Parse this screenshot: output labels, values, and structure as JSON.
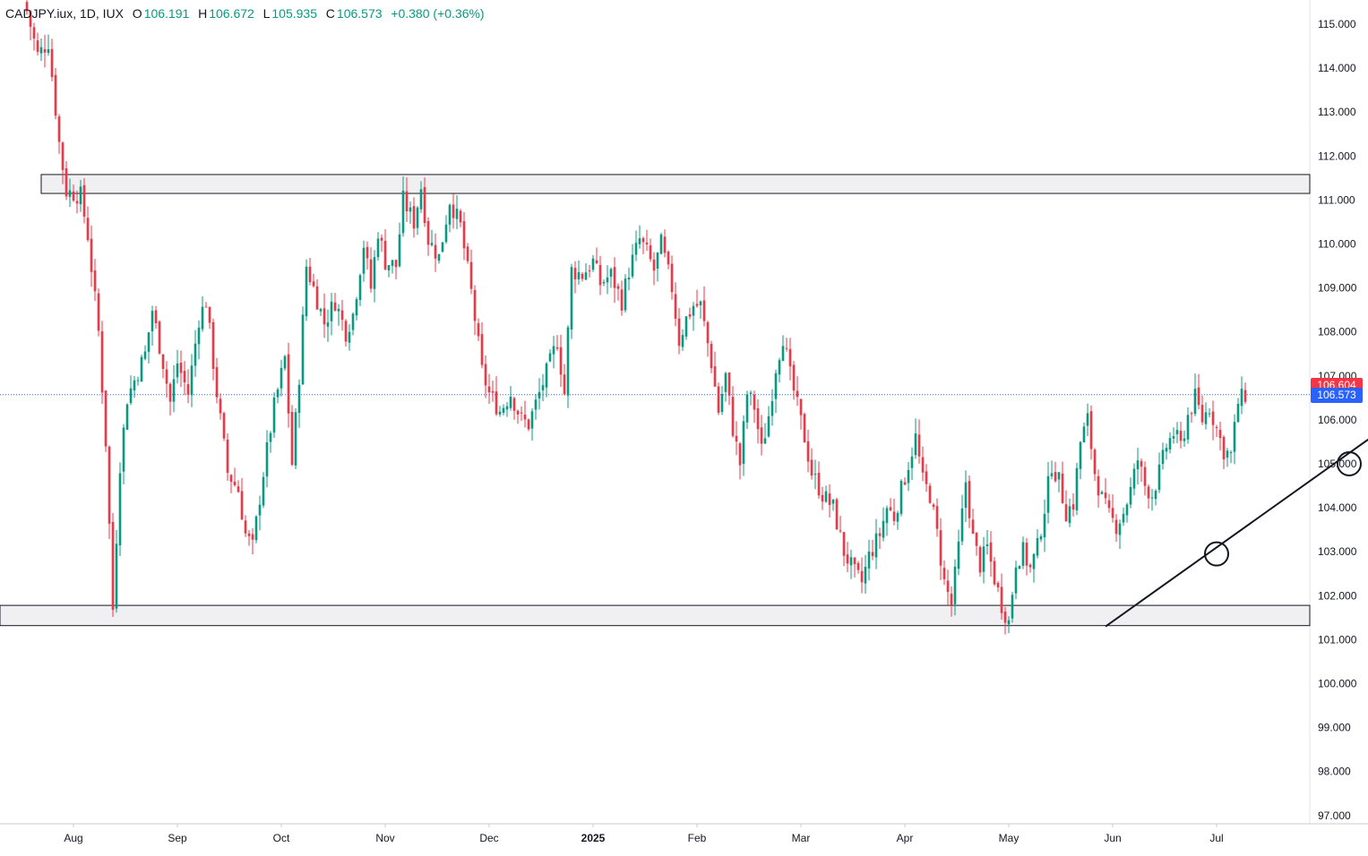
{
  "legend": {
    "symbol": "CADJPY.iux, 1D, IUX",
    "open_label": "O",
    "open": "106.191",
    "high_label": "H",
    "high": "106.672",
    "low_label": "L",
    "low": "105.935",
    "close_label": "C",
    "close": "106.573",
    "change": "+0.380 (+0.36%)"
  },
  "price_tags": {
    "high_marker": "106.604",
    "last_price": "106.573"
  },
  "colors": {
    "up": "#089981",
    "down": "#f23645",
    "tag_red": "#f23645",
    "tag_blue": "#2962ff",
    "grid_line": "#e0e3eb",
    "zone_fill": "#f0f0f2"
  },
  "chart_data": {
    "type": "candlestick",
    "title": "CADJPY.iux, 1D, IUX",
    "xlabel": "",
    "ylabel": "",
    "ylim": [
      96.8,
      115.5
    ],
    "y_ticks": [
      115,
      114,
      113,
      112,
      111,
      110,
      109,
      108,
      107,
      106,
      105,
      104,
      103,
      102,
      101,
      100,
      99,
      98,
      97
    ],
    "y_tick_labels": [
      "115.000",
      "114.000",
      "113.000",
      "112.000",
      "111.000",
      "110.000",
      "109.000",
      "108.000",
      "107.000",
      "106.000",
      "105.000",
      "104.000",
      "103.000",
      "102.000",
      "101.000",
      "100.000",
      "99.000",
      "98.000",
      "97.000"
    ],
    "x_ticks": [
      {
        "label": "Aug",
        "index": 13
      },
      {
        "label": "Sep",
        "index": 42
      },
      {
        "label": "Oct",
        "index": 71
      },
      {
        "label": "Nov",
        "index": 100
      },
      {
        "label": "Dec",
        "index": 129
      },
      {
        "label": "2025",
        "index": 158
      },
      {
        "label": "Feb",
        "index": 187
      },
      {
        "label": "Mar",
        "index": 216
      },
      {
        "label": "Apr",
        "index": 245
      },
      {
        "label": "May",
        "index": 274
      },
      {
        "label": "Jun",
        "index": 303
      },
      {
        "label": "Jul",
        "index": 332
      }
    ],
    "bar_count": 340,
    "waypoints": [
      [
        0,
        115.3
      ],
      [
        3,
        114.3
      ],
      [
        6,
        114.6
      ],
      [
        9,
        112.3
      ],
      [
        11,
        111.2
      ],
      [
        15,
        111.1
      ],
      [
        17,
        110.2
      ],
      [
        20,
        108.0
      ],
      [
        22,
        105.5
      ],
      [
        24,
        101.7
      ],
      [
        26,
        105.0
      ],
      [
        28,
        106.5
      ],
      [
        33,
        107.5
      ],
      [
        35,
        108.5
      ],
      [
        38,
        107.3
      ],
      [
        40,
        106.4
      ],
      [
        42,
        107.3
      ],
      [
        45,
        106.6
      ],
      [
        48,
        108.3
      ],
      [
        50,
        108.7
      ],
      [
        53,
        106.6
      ],
      [
        56,
        104.8
      ],
      [
        59,
        104.4
      ],
      [
        61,
        103.4
      ],
      [
        63,
        103.1
      ],
      [
        66,
        104.8
      ],
      [
        69,
        106.3
      ],
      [
        72,
        107.4
      ],
      [
        74,
        105.0
      ],
      [
        76,
        107.0
      ],
      [
        78,
        109.5
      ],
      [
        80,
        109.0
      ],
      [
        83,
        108.2
      ],
      [
        86,
        108.7
      ],
      [
        89,
        108.0
      ],
      [
        91,
        108.4
      ],
      [
        94,
        110.0
      ],
      [
        96,
        109.0
      ],
      [
        98,
        110.3
      ],
      [
        100,
        109.6
      ],
      [
        103,
        109.5
      ],
      [
        105,
        111.0
      ],
      [
        108,
        110.5
      ],
      [
        110,
        111.3
      ],
      [
        112,
        110.1
      ],
      [
        115,
        109.7
      ],
      [
        118,
        111.0
      ],
      [
        121,
        110.4
      ],
      [
        124,
        108.9
      ],
      [
        127,
        107.1
      ],
      [
        129,
        106.6
      ],
      [
        132,
        106.2
      ],
      [
        135,
        106.6
      ],
      [
        138,
        106.0
      ],
      [
        140,
        105.9
      ],
      [
        143,
        106.6
      ],
      [
        146,
        107.3
      ],
      [
        148,
        107.8
      ],
      [
        150,
        106.6
      ],
      [
        152,
        109.4
      ],
      [
        155,
        109.3
      ],
      [
        158,
        109.6
      ],
      [
        160,
        109.1
      ],
      [
        163,
        109.3
      ],
      [
        166,
        108.7
      ],
      [
        168,
        109.4
      ],
      [
        171,
        110.1
      ],
      [
        173,
        109.8
      ],
      [
        175,
        109.4
      ],
      [
        177,
        110.0
      ],
      [
        180,
        109.0
      ],
      [
        182,
        107.8
      ],
      [
        184,
        108.3
      ],
      [
        186,
        108.6
      ],
      [
        188,
        108.6
      ],
      [
        191,
        107.3
      ],
      [
        193,
        106.2
      ],
      [
        195,
        107.0
      ],
      [
        197,
        105.8
      ],
      [
        199,
        105.0
      ],
      [
        201,
        106.6
      ],
      [
        203,
        106.3
      ],
      [
        205,
        105.3
      ],
      [
        207,
        106.1
      ],
      [
        209,
        107.2
      ],
      [
        211,
        107.9
      ],
      [
        213,
        107.0
      ],
      [
        215,
        106.3
      ],
      [
        217,
        105.6
      ],
      [
        219,
        104.8
      ],
      [
        222,
        104.3
      ],
      [
        225,
        104.0
      ],
      [
        228,
        103.0
      ],
      [
        231,
        102.5
      ],
      [
        233,
        102.3
      ],
      [
        235,
        102.9
      ],
      [
        238,
        103.4
      ],
      [
        240,
        104.0
      ],
      [
        242,
        103.8
      ],
      [
        244,
        104.4
      ],
      [
        246,
        105.0
      ],
      [
        248,
        105.6
      ],
      [
        250,
        104.6
      ],
      [
        252,
        104.3
      ],
      [
        254,
        103.4
      ],
      [
        256,
        102.3
      ],
      [
        258,
        101.8
      ],
      [
        260,
        103.1
      ],
      [
        262,
        104.6
      ],
      [
        264,
        103.3
      ],
      [
        266,
        102.7
      ],
      [
        268,
        103.1
      ],
      [
        270,
        102.4
      ],
      [
        272,
        101.8
      ],
      [
        274,
        101.4
      ],
      [
        276,
        102.8
      ],
      [
        278,
        103.0
      ],
      [
        280,
        102.6
      ],
      [
        282,
        103.1
      ],
      [
        284,
        104.0
      ],
      [
        286,
        105.0
      ],
      [
        288,
        104.6
      ],
      [
        290,
        103.9
      ],
      [
        292,
        104.1
      ],
      [
        294,
        105.5
      ],
      [
        296,
        106.0
      ],
      [
        298,
        104.8
      ],
      [
        300,
        104.2
      ],
      [
        302,
        103.8
      ],
      [
        304,
        103.6
      ],
      [
        306,
        103.9
      ],
      [
        308,
        104.4
      ],
      [
        310,
        105.1
      ],
      [
        312,
        104.5
      ],
      [
        314,
        104.3
      ],
      [
        316,
        104.8
      ],
      [
        318,
        105.4
      ],
      [
        320,
        105.7
      ],
      [
        322,
        105.4
      ],
      [
        324,
        106.1
      ],
      [
        326,
        106.5
      ],
      [
        328,
        106.0
      ],
      [
        330,
        106.3
      ],
      [
        332,
        105.8
      ],
      [
        334,
        105.3
      ],
      [
        336,
        105.2
      ],
      [
        338,
        106.4
      ],
      [
        340,
        106.57
      ]
    ],
    "horizontal_zones": [
      {
        "name": "resistance-zone",
        "from": 111.15,
        "to": 111.58
      },
      {
        "name": "support-zone",
        "from": 101.32,
        "to": 101.78
      }
    ],
    "trendline": {
      "start": {
        "index": 301,
        "price": 101.3
      },
      "end": {
        "index": 382,
        "price": 106.0
      }
    },
    "circled_points": [
      {
        "index": 332,
        "price": 102.95
      },
      {
        "index": 369,
        "price": 105.0
      }
    ],
    "last_price_line": 106.573
  }
}
